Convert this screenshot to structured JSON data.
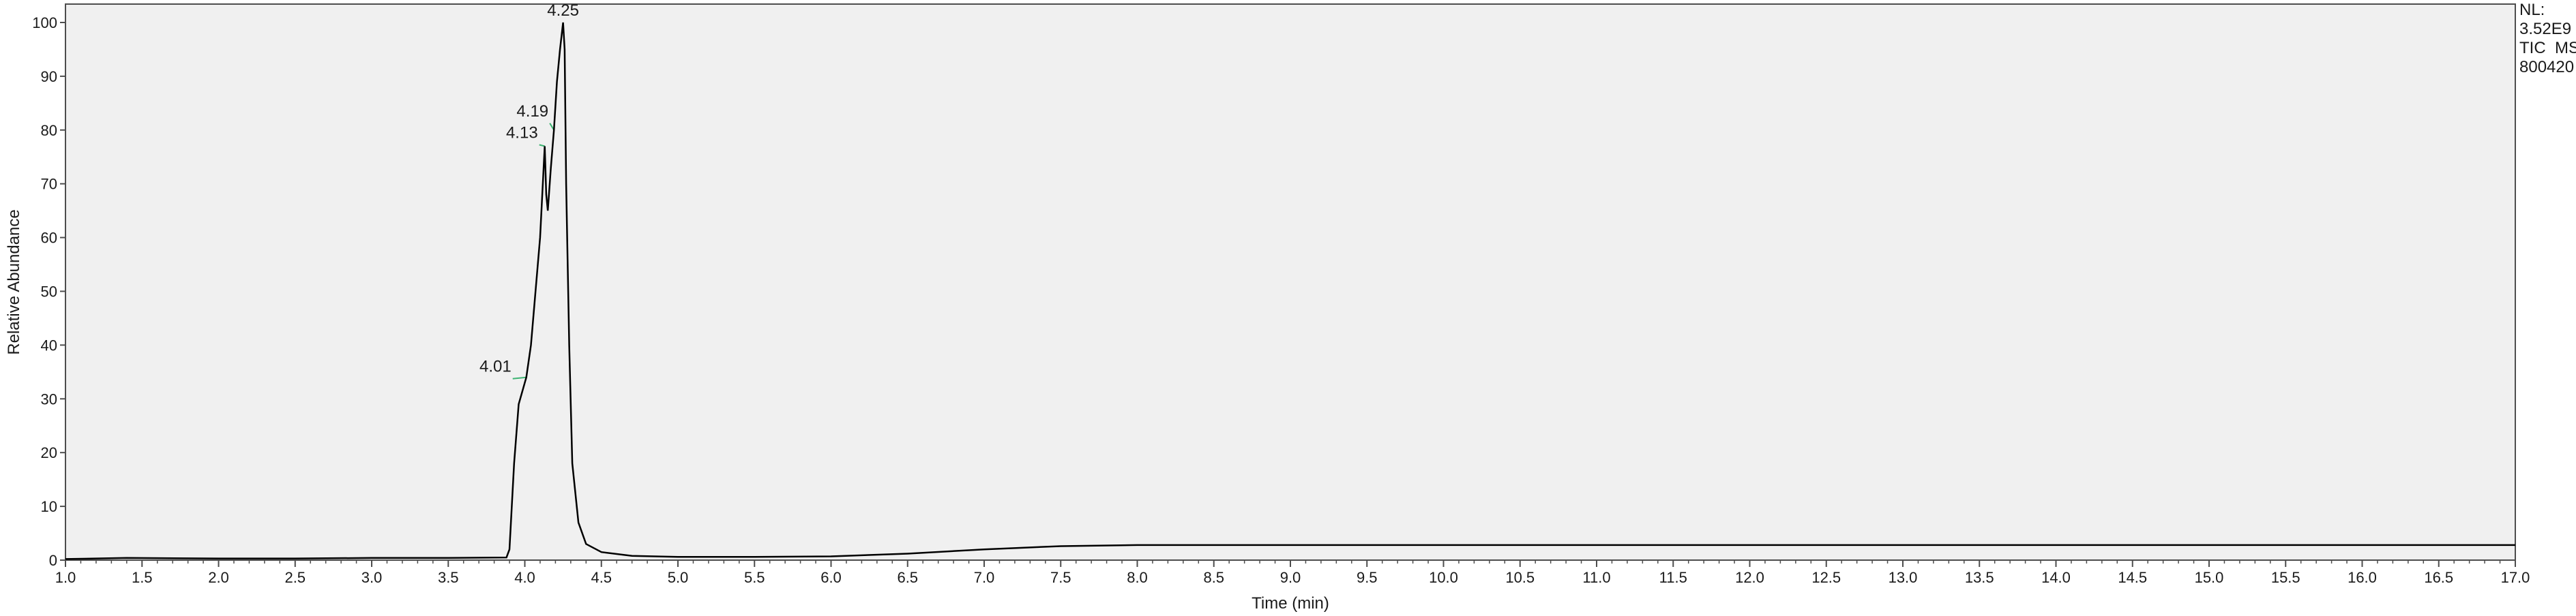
{
  "chart_data": {
    "type": "line",
    "xlabel": "Time (min)",
    "ylabel": "Relative Abundance",
    "xlim": [
      1.0,
      17.0
    ],
    "ylim": [
      0,
      100
    ],
    "x_ticks": [
      "1.0",
      "1.5",
      "2.0",
      "2.5",
      "3.0",
      "3.5",
      "4.0",
      "4.5",
      "5.0",
      "5.5",
      "6.0",
      "6.5",
      "7.0",
      "7.5",
      "8.0",
      "8.5",
      "9.0",
      "9.5",
      "10.0",
      "10.5",
      "11.0",
      "11.5",
      "12.0",
      "12.5",
      "13.0",
      "13.5",
      "14.0",
      "14.5",
      "15.0",
      "15.5",
      "16.0",
      "16.5",
      "17.0"
    ],
    "y_ticks": [
      "0",
      "10",
      "20",
      "30",
      "40",
      "50",
      "60",
      "70",
      "80",
      "90",
      "100"
    ],
    "grid": false,
    "series": [
      {
        "x": [
          1.0,
          1.4,
          2.0,
          2.5,
          3.0,
          3.5,
          3.88,
          3.9,
          3.93,
          3.96,
          4.01,
          4.04,
          4.07,
          4.1,
          4.13,
          4.14,
          4.15,
          4.17,
          4.19,
          4.21,
          4.23,
          4.25,
          4.26,
          4.27,
          4.29,
          4.31,
          4.35,
          4.4,
          4.5,
          4.7,
          5.0,
          5.5,
          6.0,
          6.5,
          7.0,
          7.5,
          8.0,
          9.0,
          10.0,
          12.0,
          14.0,
          16.0,
          17.0
        ],
        "y": [
          0.2,
          0.4,
          0.3,
          0.3,
          0.4,
          0.4,
          0.5,
          2.0,
          18.0,
          29.0,
          34.0,
          40.0,
          50.0,
          60.0,
          77.0,
          68.0,
          65.0,
          73.0,
          80.0,
          89.0,
          95.0,
          100.0,
          95.0,
          70.0,
          40.0,
          18.0,
          7.0,
          3.0,
          1.5,
          0.8,
          0.6,
          0.6,
          0.7,
          1.2,
          2.0,
          2.6,
          2.8,
          2.8,
          2.8,
          2.8,
          2.8,
          2.8,
          2.8
        ]
      }
    ],
    "annotations": [
      {
        "text": "4.25",
        "x": 4.25,
        "y": 100.0
      },
      {
        "text": "4.19",
        "x": 4.19,
        "y": 80.0
      },
      {
        "text": "4.13",
        "x": 4.13,
        "y": 77.0
      },
      {
        "text": "4.01",
        "x": 4.01,
        "y": 34.0
      }
    ],
    "info": [
      "NL:",
      "3.52E9",
      "TIC  MS",
      "800420"
    ]
  }
}
